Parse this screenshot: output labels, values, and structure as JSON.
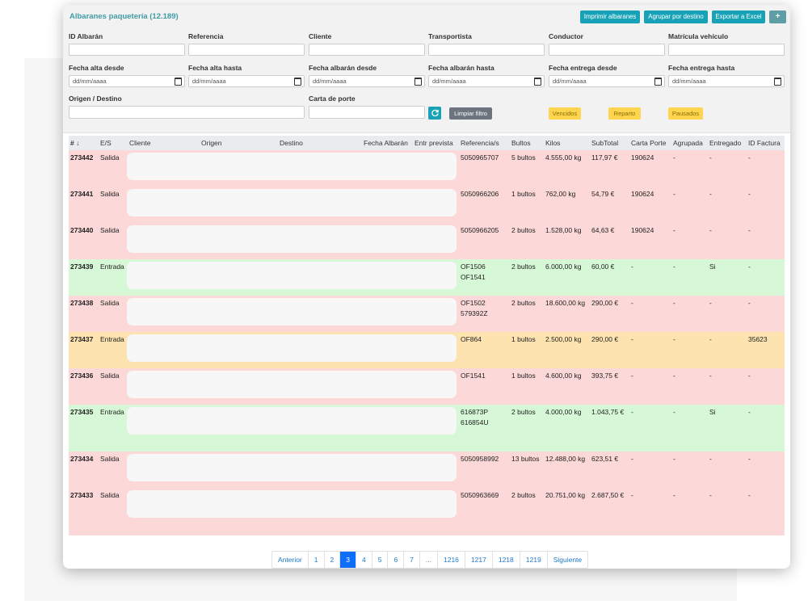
{
  "header": {
    "title": "Albaranes paquetería (12.189)",
    "buttons": [
      {
        "label": "Imprimir albaranes"
      },
      {
        "label": "Agrupar por destino"
      },
      {
        "label": "Exportar a Excel"
      },
      {
        "label": "+"
      }
    ]
  },
  "filters": {
    "row1": [
      {
        "label": "ID Albarán",
        "value": ""
      },
      {
        "label": "Referencia",
        "value": ""
      },
      {
        "label": "Cliente",
        "value": ""
      },
      {
        "label": "Transportista",
        "value": ""
      },
      {
        "label": "Conductor",
        "value": ""
      },
      {
        "label": "Matrícula vehículo",
        "value": ""
      }
    ],
    "row2": [
      {
        "label": "Fecha alta desde",
        "value": "dd/mm/aaaa"
      },
      {
        "label": "Fecha alta hasta",
        "value": "dd/mm/aaaa"
      },
      {
        "label": "Fecha albarán desde",
        "value": "dd/mm/aaaa"
      },
      {
        "label": "Fecha albarán hasta",
        "value": "dd/mm/aaaa"
      },
      {
        "label": "Fecha entrega desde",
        "value": "dd/mm/aaaa"
      },
      {
        "label": "Fecha entrega hasta",
        "value": "dd/mm/aaaa"
      }
    ],
    "row3": [
      {
        "label": "Origen / Destino",
        "value": ""
      },
      {
        "label": "Carta de porte",
        "value": ""
      }
    ],
    "refresh_icon": "refresh-icon",
    "clear_label": "Limpiar filtro",
    "status_buttons": [
      {
        "label": "Vencidos"
      },
      {
        "label": "Reparto"
      },
      {
        "label": "Pausados"
      }
    ]
  },
  "table": {
    "columns": [
      "# ↓",
      "E/S",
      "Cliente",
      "Origen",
      "Destino",
      "Fecha Albarán",
      "Entr prevista",
      "Referencia/s",
      "Bultos",
      "Kilos",
      "SubTotal",
      "Carta Porte",
      "Agrupada",
      "Entregado",
      "ID Factura"
    ],
    "colors": {
      "red": "#fdd8d8",
      "green": "#d6f8d6",
      "orange": "#fde3b0"
    },
    "rows": [
      {
        "id": "273442",
        "es": "Salida",
        "ref1": "5050965707",
        "ref2": "",
        "bultos": "5 bultos",
        "kilos": "4.555,00 kg",
        "subtotal": "117,97 €",
        "carta": "190624",
        "agrupada": "-",
        "entregado": "-",
        "factura": "-",
        "color": "red"
      },
      {
        "id": "273441",
        "es": "Salida",
        "ref1": "5050966206",
        "ref2": "",
        "bultos": "1 bultos",
        "kilos": "762,00 kg",
        "subtotal": "54,79 €",
        "carta": "190624",
        "agrupada": "-",
        "entregado": "-",
        "factura": "-",
        "color": "red"
      },
      {
        "id": "273440",
        "es": "Salida",
        "ref1": "5050966205",
        "ref2": "",
        "bultos": "2 bultos",
        "kilos": "1.528,00 kg",
        "subtotal": "64,63 €",
        "carta": "190624",
        "agrupada": "-",
        "entregado": "-",
        "factura": "-",
        "color": "red"
      },
      {
        "id": "273439",
        "es": "Entrada",
        "ref1": "OF1506",
        "ref2": "OF1541",
        "bultos": "2 bultos",
        "kilos": "6.000,00 kg",
        "subtotal": "60,00 €",
        "carta": "-",
        "agrupada": "-",
        "entregado": "Si",
        "factura": "-",
        "color": "green"
      },
      {
        "id": "273438",
        "es": "Salida",
        "ref1": "OF1502",
        "ref2": "579392Z",
        "bultos": "2 bultos",
        "kilos": "18.600,00 kg",
        "subtotal": "290,00 €",
        "carta": "-",
        "agrupada": "-",
        "entregado": "-",
        "factura": "-",
        "color": "red"
      },
      {
        "id": "273437",
        "es": "Entrada",
        "ref1": "OF864",
        "ref2": "",
        "bultos": "1 bultos",
        "kilos": "2.500,00 kg",
        "subtotal": "290,00 €",
        "carta": "-",
        "agrupada": "-",
        "entregado": "-",
        "factura": "35623",
        "color": "orange"
      },
      {
        "id": "273436",
        "es": "Salida",
        "ref1": "OF1541",
        "ref2": "",
        "bultos": "1 bultos",
        "kilos": "4.600,00 kg",
        "subtotal": "393,75 €",
        "carta": "-",
        "agrupada": "-",
        "entregado": "-",
        "factura": "-",
        "color": "red"
      },
      {
        "id": "273435",
        "es": "Entrada",
        "ref1": "616873P",
        "ref2": "616854U",
        "bultos": "2 bultos",
        "kilos": "4.000,00 kg",
        "subtotal": "1.043,75 €",
        "carta": "-",
        "agrupada": "-",
        "entregado": "Si",
        "factura": "-",
        "color": "green"
      },
      {
        "id": "273434",
        "es": "Salida",
        "ref1": "5050958992",
        "ref2": "",
        "bultos": "13 bultos",
        "kilos": "12.488,00 kg",
        "subtotal": "623,51 €",
        "carta": "-",
        "agrupada": "-",
        "entregado": "-",
        "factura": "-",
        "color": "red"
      },
      {
        "id": "273433",
        "es": "Salida",
        "ref1": "5050963669",
        "ref2": "",
        "bultos": "2 bultos",
        "kilos": "20.751,00 kg",
        "subtotal": "2.687,50 €",
        "carta": "-",
        "agrupada": "-",
        "entregado": "-",
        "factura": "-",
        "color": "red"
      }
    ]
  },
  "pagination": {
    "items": [
      {
        "label": "Anterior",
        "state": "normal"
      },
      {
        "label": "1",
        "state": "normal"
      },
      {
        "label": "2",
        "state": "normal"
      },
      {
        "label": "3",
        "state": "active"
      },
      {
        "label": "4",
        "state": "normal"
      },
      {
        "label": "5",
        "state": "normal"
      },
      {
        "label": "6",
        "state": "normal"
      },
      {
        "label": "7",
        "state": "normal"
      },
      {
        "label": "...",
        "state": "muted"
      },
      {
        "label": "1216",
        "state": "normal"
      },
      {
        "label": "1217",
        "state": "normal"
      },
      {
        "label": "1218",
        "state": "normal"
      },
      {
        "label": "1219",
        "state": "normal"
      },
      {
        "label": "Siguiente",
        "state": "normal"
      }
    ]
  }
}
